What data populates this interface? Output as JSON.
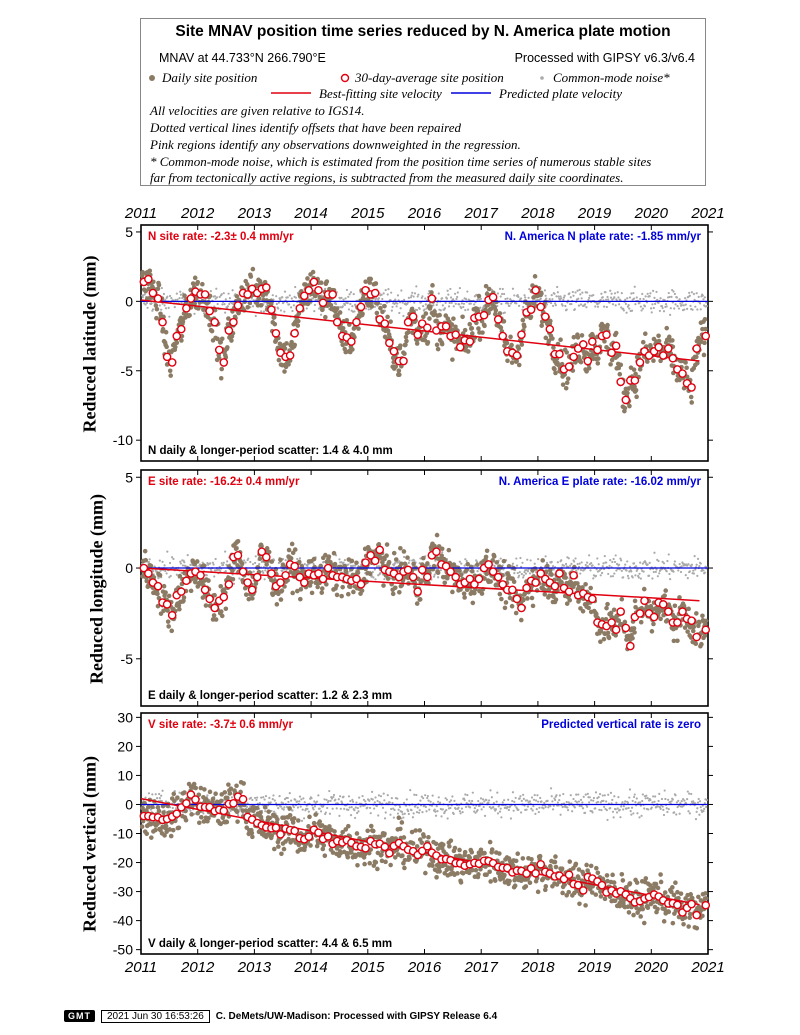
{
  "legend": {
    "title": "Site MNAV position time series reduced by N. America plate motion",
    "site_location": "MNAV at 44.733°N 266.790°E",
    "processing": "Processed with GIPSY v6.3/v6.4",
    "daily_label": "Daily site position",
    "avg_label": "30-day-average site position",
    "cm_label": "Common-mode noise*",
    "bestfit_label": "Best-fitting site velocity",
    "predicted_label": "Predicted plate velocity",
    "note1": "All velocities are given relative to IGS14.",
    "note2": "Dotted vertical lines identify offsets that have been repaired",
    "note3": "Pink regions identify any observations downweighted in the regression.",
    "note4": "* Common-mode noise, which is estimated from the position time series of numerous stable sites",
    "note5": "far from tectonically active regions, is subtracted from the measured daily site coordinates."
  },
  "colors": {
    "daily": "#8c7b64",
    "common_mode": "#aaaaaa",
    "average_fill": "#ffffff",
    "average_edge": "#e0000f",
    "site_rate": "#e0000f",
    "plate_rate": "#0000dd"
  },
  "chart_data": [
    {
      "type": "scatter",
      "component": "N",
      "ylabel": "Reduced latitude (mm)",
      "ylim": [
        -11.5,
        5.5
      ],
      "yticks": [
        5,
        0,
        -5,
        -10
      ],
      "xlim": [
        2011.0,
        2021.0
      ],
      "xticks": [
        2011,
        2012,
        2013,
        2014,
        2015,
        2016,
        2017,
        2018,
        2019,
        2020,
        2021
      ],
      "site_rate_text": "N site rate:  -2.3± 0.4 mm/yr",
      "plate_rate_text": "N. America N plate rate: -1.85 mm/yr",
      "scatter_text": "N daily & longer-period scatter:   1.4 &   4.0 mm",
      "fit_line": {
        "x": [
          2011.0,
          2020.85
        ],
        "y": [
          0.1,
          -4.3
        ]
      },
      "plate_line_y": 0,
      "averages": {
        "x": [
          2011.05,
          2011.13,
          2011.21,
          2011.3,
          2011.38,
          2011.46,
          2011.55,
          2011.63,
          2011.71,
          2011.8,
          2011.88,
          2011.96,
          2012.05,
          2012.13,
          2012.21,
          2012.3,
          2012.38,
          2012.46,
          2012.55,
          2012.63,
          2012.71,
          2012.8,
          2012.88,
          2012.96,
          2013.05,
          2013.13,
          2013.21,
          2013.3,
          2013.38,
          2013.46,
          2013.55,
          2013.63,
          2013.71,
          2013.8,
          2013.88,
          2013.96,
          2014.05,
          2014.13,
          2014.21,
          2014.3,
          2014.38,
          2014.46,
          2014.55,
          2014.63,
          2014.71,
          2014.8,
          2014.88,
          2014.96,
          2015.05,
          2015.13,
          2015.21,
          2015.3,
          2015.38,
          2015.46,
          2015.55,
          2015.63,
          2015.71,
          2015.8,
          2015.88,
          2015.96,
          2016.05,
          2016.13,
          2016.21,
          2016.3,
          2016.38,
          2016.46,
          2016.55,
          2016.63,
          2016.71,
          2016.8,
          2016.88,
          2016.96,
          2017.05,
          2017.13,
          2017.21,
          2017.3,
          2017.38,
          2017.46,
          2017.55,
          2017.63,
          2017.71,
          2017.8,
          2017.88,
          2017.96,
          2018.05,
          2018.13,
          2018.21,
          2018.3,
          2018.38,
          2018.46,
          2018.55,
          2018.63,
          2018.71,
          2018.8,
          2018.88,
          2018.96,
          2019.05,
          2019.13,
          2019.21,
          2019.3,
          2019.38,
          2019.46,
          2019.55,
          2019.63,
          2019.71,
          2019.8,
          2019.88,
          2019.96,
          2020.05,
          2020.13,
          2020.21,
          2020.3,
          2020.38,
          2020.46,
          2020.55,
          2020.63,
          2020.71,
          2020.8,
          2020.96
        ],
        "y": [
          1.4,
          1.6,
          0.6,
          0.2,
          -1.5,
          -4.0,
          -4.4,
          -2.5,
          -2.0,
          -0.5,
          0.2,
          0.7,
          0.5,
          0.5,
          -0.7,
          -1.5,
          -3.5,
          -4.4,
          -2.1,
          -1.5,
          -0.3,
          0.6,
          0.5,
          0.9,
          0.6,
          0.9,
          1.0,
          -0.6,
          -2.3,
          -3.7,
          -4.0,
          -3.9,
          -2.3,
          -0.5,
          0.4,
          0.8,
          1.4,
          0.8,
          -0.1,
          0.5,
          0.5,
          -1.5,
          -2.5,
          -2.6,
          -2.9,
          -1.5,
          -0.4,
          0.8,
          0.5,
          0.6,
          -1.3,
          -1.6,
          -3.0,
          -3.6,
          -4.3,
          -4.3,
          -1.5,
          -1.1,
          -2.4,
          -1.6,
          -1.9,
          0.2,
          -2.1,
          -1.8,
          -1.8,
          -2.5,
          -2.4,
          -3.3,
          -2.8,
          -2.9,
          -1.2,
          -1.1,
          -1.0,
          0.1,
          0.3,
          -1.3,
          -2.5,
          -3.6,
          -3.7,
          -3.9,
          -2.4,
          -0.8,
          -0.6,
          0.8,
          -0.4,
          -1.1,
          -2.0,
          -3.8,
          -3.8,
          -4.9,
          -4.7,
          -4.0,
          -3.4,
          -3.1,
          -4.3,
          -2.9,
          -3.5,
          -2.5,
          -2.4,
          -3.7,
          -3.2,
          -5.8,
          -7.1,
          -5.7,
          -5.7,
          -4.4,
          -3.6,
          -3.9,
          -3.6,
          -3.3,
          -3.9,
          -3.4,
          -4.1,
          -4.9,
          -5.2,
          -5.9,
          -6.2,
          -3.4,
          -2.5
        ]
      }
    },
    {
      "type": "scatter",
      "component": "E",
      "ylabel": "Reduced longitude (mm)",
      "ylim": [
        -7.6,
        5.4
      ],
      "yticks": [
        5,
        0,
        -5
      ],
      "xlim": [
        2011.0,
        2021.0
      ],
      "xticks": [
        2011,
        2012,
        2013,
        2014,
        2015,
        2016,
        2017,
        2018,
        2019,
        2020,
        2021
      ],
      "site_rate_text": "E site rate: -16.2± 0.4 mm/yr",
      "plate_rate_text": "N. America E plate rate: -16.02 mm/yr",
      "scatter_text": "E daily & longer-period scatter:   1.2 &   2.3 mm",
      "fit_line": {
        "x": [
          2011.0,
          2020.85
        ],
        "y": [
          0.0,
          -1.8
        ]
      },
      "plate_line_y": 0,
      "averages": {
        "x": [
          2011.05,
          2011.13,
          2011.21,
          2011.3,
          2011.38,
          2011.46,
          2011.55,
          2011.63,
          2011.71,
          2011.8,
          2011.88,
          2011.96,
          2012.05,
          2012.13,
          2012.21,
          2012.3,
          2012.38,
          2012.46,
          2012.55,
          2012.63,
          2012.71,
          2012.8,
          2012.88,
          2012.96,
          2013.05,
          2013.13,
          2013.21,
          2013.3,
          2013.38,
          2013.46,
          2013.55,
          2013.63,
          2013.71,
          2013.8,
          2013.88,
          2013.96,
          2014.05,
          2014.13,
          2014.21,
          2014.3,
          2014.38,
          2014.46,
          2014.55,
          2014.63,
          2014.71,
          2014.8,
          2014.88,
          2014.96,
          2015.05,
          2015.13,
          2015.21,
          2015.3,
          2015.38,
          2015.46,
          2015.55,
          2015.63,
          2015.71,
          2015.8,
          2015.88,
          2015.96,
          2016.05,
          2016.13,
          2016.21,
          2016.3,
          2016.38,
          2016.46,
          2016.55,
          2016.63,
          2016.71,
          2016.8,
          2016.88,
          2016.96,
          2017.05,
          2017.13,
          2017.21,
          2017.3,
          2017.38,
          2017.46,
          2017.55,
          2017.63,
          2017.71,
          2017.8,
          2017.88,
          2017.96,
          2018.05,
          2018.13,
          2018.21,
          2018.3,
          2018.38,
          2018.46,
          2018.55,
          2018.63,
          2018.71,
          2018.8,
          2018.88,
          2018.96,
          2019.05,
          2019.13,
          2019.21,
          2019.3,
          2019.38,
          2019.46,
          2019.55,
          2019.63,
          2019.71,
          2019.8,
          2019.88,
          2019.96,
          2020.05,
          2020.13,
          2020.21,
          2020.3,
          2020.38,
          2020.46,
          2020.55,
          2020.63,
          2020.71,
          2020.8,
          2020.96
        ],
        "y": [
          0.0,
          -0.3,
          -0.8,
          -1.0,
          -1.9,
          -2.0,
          -2.6,
          -1.5,
          -1.3,
          -0.7,
          -0.3,
          -0.2,
          -0.4,
          -1.2,
          -1.7,
          -2.2,
          -1.8,
          -1.6,
          -0.9,
          0.6,
          0.7,
          -0.2,
          -0.8,
          -1.2,
          -0.5,
          0.9,
          0.6,
          -0.3,
          -1.0,
          -0.8,
          -0.4,
          0.2,
          0.1,
          -0.5,
          -0.8,
          -0.3,
          -0.4,
          -0.3,
          -0.6,
          0.0,
          -0.4,
          -0.5,
          -0.5,
          -0.6,
          -0.7,
          -0.6,
          -0.9,
          0.3,
          0.7,
          0.4,
          1.0,
          -0.1,
          -0.2,
          -0.3,
          -0.5,
          -0.2,
          -0.1,
          -0.5,
          -1.3,
          -0.1,
          -0.5,
          0.7,
          0.9,
          0.2,
          0.1,
          -0.2,
          -0.5,
          -0.9,
          -0.8,
          -0.6,
          -0.9,
          -0.6,
          0.0,
          0.2,
          -0.2,
          -0.5,
          -0.9,
          -1.2,
          -1.2,
          -1.7,
          -2.2,
          -1.1,
          -0.7,
          -0.8,
          -0.3,
          -0.6,
          -0.8,
          -1.0,
          -0.3,
          -1.1,
          -1.3,
          -0.4,
          -1.5,
          -1.4,
          -1.6,
          -1.7,
          -3.0,
          -3.1,
          -3.2,
          -3.0,
          -3.4,
          -2.4,
          -3.3,
          -4.3,
          -2.7,
          -2.5,
          -1.8,
          -2.5,
          -2.7,
          -1.9,
          -2.0,
          -2.4,
          -3.0,
          -3.0,
          -2.4,
          -2.8,
          -2.9,
          -3.8,
          -3.4
        ]
      }
    },
    {
      "type": "scatter",
      "component": "V",
      "ylabel": "Reduced vertical (mm)",
      "ylim": [
        -51.5,
        31.5
      ],
      "yticks": [
        30,
        20,
        10,
        0,
        -10,
        -20,
        -30,
        -40,
        -50
      ],
      "xlim": [
        2011.0,
        2021.0
      ],
      "xticks": [
        2011,
        2012,
        2013,
        2014,
        2015,
        2016,
        2017,
        2018,
        2019,
        2020,
        2021
      ],
      "site_rate_text": "V site rate:  -3.7± 0.6 mm/yr",
      "plate_rate_text": "Predicted vertical rate is zero",
      "scatter_text": "V daily & longer-period scatter:   4.4 &   6.5 mm",
      "fit_line": {
        "x": [
          2011.0,
          2020.85
        ],
        "y": [
          2.0,
          -34.5
        ]
      },
      "plate_line_y": 0,
      "averages": {
        "x": [
          2011.05,
          2011.13,
          2011.21,
          2011.3,
          2011.38,
          2011.46,
          2011.55,
          2011.63,
          2011.71,
          2011.8,
          2011.88,
          2011.96,
          2012.05,
          2012.13,
          2012.21,
          2012.3,
          2012.38,
          2012.46,
          2012.55,
          2012.63,
          2012.71,
          2012.8,
          2012.88,
          2012.96,
          2013.05,
          2013.13,
          2013.21,
          2013.3,
          2013.38,
          2013.46,
          2013.55,
          2013.63,
          2013.71,
          2013.8,
          2013.88,
          2013.96,
          2014.05,
          2014.13,
          2014.21,
          2014.3,
          2014.38,
          2014.46,
          2014.55,
          2014.63,
          2014.71,
          2014.8,
          2014.88,
          2014.96,
          2015.05,
          2015.13,
          2015.21,
          2015.3,
          2015.38,
          2015.46,
          2015.55,
          2015.63,
          2015.71,
          2015.8,
          2015.88,
          2015.96,
          2016.05,
          2016.13,
          2016.21,
          2016.3,
          2016.38,
          2016.46,
          2016.55,
          2016.63,
          2016.71,
          2016.8,
          2016.88,
          2016.96,
          2017.05,
          2017.13,
          2017.21,
          2017.3,
          2017.38,
          2017.46,
          2017.55,
          2017.63,
          2017.71,
          2017.8,
          2017.88,
          2017.96,
          2018.05,
          2018.13,
          2018.21,
          2018.3,
          2018.38,
          2018.46,
          2018.55,
          2018.63,
          2018.71,
          2018.8,
          2018.88,
          2018.96,
          2019.05,
          2019.13,
          2019.21,
          2019.3,
          2019.38,
          2019.46,
          2019.55,
          2019.63,
          2019.71,
          2019.8,
          2019.88,
          2019.96,
          2020.05,
          2020.13,
          2020.21,
          2020.3,
          2020.38,
          2020.46,
          2020.55,
          2020.63,
          2020.71,
          2020.8,
          2020.96
        ],
        "y": [
          -4.0,
          -4.0,
          -4.4,
          -4.4,
          -5.3,
          -5.0,
          -4.2,
          -3.2,
          -1.0,
          0.4,
          3.4,
          1.7,
          -0.8,
          -0.9,
          -0.9,
          -2.3,
          -1.8,
          -2.2,
          0.2,
          0.4,
          2.7,
          1.8,
          -4.3,
          -5.2,
          -6.4,
          -7.2,
          -7.9,
          -8.2,
          -8.0,
          -10.3,
          -8.3,
          -8.8,
          -9.1,
          -11.6,
          -12.0,
          -11.1,
          -8.7,
          -9.7,
          -11.9,
          -11.0,
          -13.6,
          -12.6,
          -13.1,
          -12.3,
          -13.2,
          -14.4,
          -14.6,
          -15.1,
          -12.6,
          -13.7,
          -13.5,
          -14.6,
          -16.8,
          -14.3,
          -13.3,
          -14.4,
          -15.6,
          -16.1,
          -17.4,
          -16.0,
          -14.4,
          -16.6,
          -17.6,
          -18.9,
          -18.8,
          -19.2,
          -20.2,
          -20.3,
          -21.1,
          -20.6,
          -20.1,
          -20.4,
          -19.4,
          -19.5,
          -20.2,
          -21.5,
          -21.8,
          -21.9,
          -23.4,
          -22.8,
          -22.9,
          -23.8,
          -22.0,
          -23.7,
          -20.6,
          -23.2,
          -23.8,
          -24.8,
          -24.5,
          -25.7,
          -24.2,
          -27.4,
          -27.8,
          -29.6,
          -25.0,
          -25.5,
          -26.5,
          -27.8,
          -30.3,
          -29.6,
          -30.7,
          -29.9,
          -31.0,
          -32.3,
          -33.7,
          -33.3,
          -32.4,
          -31.9,
          -31.0,
          -31.7,
          -33.0,
          -34.1,
          -34.0,
          -34.6,
          -37.2,
          -35.6,
          -34.3,
          -38.1,
          -34.7
        ]
      }
    }
  ],
  "footer": {
    "logo": "GMT",
    "timestamp": "2021 Jun 30 16:53:26",
    "credit": "C. DeMets/UW-Madison: Processed with GIPSY Release 6.4"
  }
}
